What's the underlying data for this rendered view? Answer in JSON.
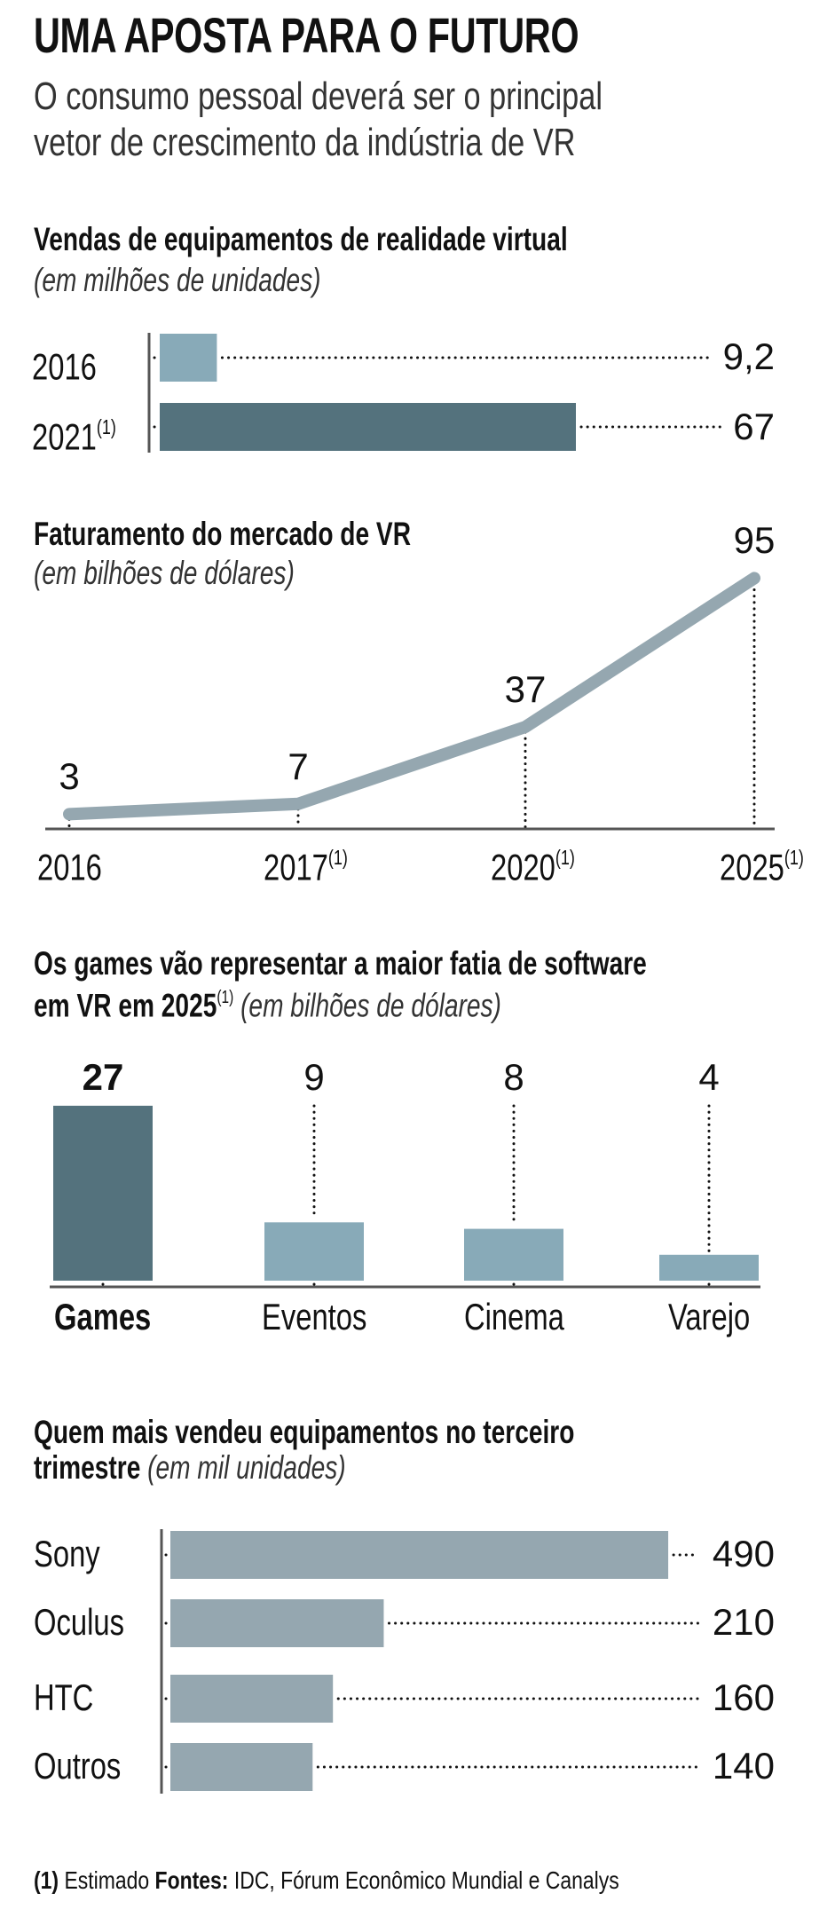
{
  "header": {
    "title": "UMA APOSTA PARA O FUTURO",
    "subtitle_line1": "O consumo pessoal deverá ser o principal",
    "subtitle_line2": "vetor de crescimento da indústria de VR"
  },
  "colors": {
    "dark_bar": "#54727D",
    "light_bar": "#88AAB8",
    "gray_bar": "#95A7B0",
    "axis": "#555555",
    "text": "#111111"
  },
  "footnote_marker": "(1)",
  "chart_data": [
    {
      "type": "bar",
      "orientation": "horizontal",
      "title": "Vendas de equipamentos de realidade virtual",
      "subtitle": "(em milhões de unidades)",
      "categories": [
        "2016",
        "2021"
      ],
      "category_notes": [
        "",
        "(1)"
      ],
      "values": [
        9.2,
        67
      ],
      "value_labels": [
        "9,2",
        "67"
      ],
      "highlight": [
        false,
        true
      ]
    },
    {
      "type": "line",
      "title": "Faturamento do mercado de VR",
      "subtitle": "(em bilhões de dólares)",
      "x": [
        "2016",
        "2017",
        "2020",
        "2025"
      ],
      "x_notes": [
        "",
        "(1)",
        "(1)",
        "(1)"
      ],
      "values": [
        3,
        7,
        37,
        95
      ],
      "value_labels": [
        "3",
        "7",
        "37",
        "95"
      ]
    },
    {
      "type": "bar",
      "orientation": "vertical",
      "title_line1": "Os games vão representar a maior fatia de software",
      "title_line2": "em VR em 2025",
      "title_note": "(1)",
      "subtitle": "(em bilhões de dólares)",
      "categories": [
        "Games",
        "Eventos",
        "Cinema",
        "Varejo"
      ],
      "values": [
        27,
        9,
        8,
        4
      ],
      "value_labels": [
        "27",
        "9",
        "8",
        "4"
      ],
      "highlight": [
        true,
        false,
        false,
        false
      ]
    },
    {
      "type": "bar",
      "orientation": "horizontal",
      "title_line1": "Quem mais vendeu equipamentos no terceiro",
      "title_line2": "trimestre",
      "subtitle": "(em mil unidades)",
      "categories": [
        "Sony",
        "Oculus",
        "HTC",
        "Outros"
      ],
      "values": [
        490,
        210,
        160,
        140
      ],
      "value_labels": [
        "490",
        "210",
        "160",
        "140"
      ]
    }
  ],
  "footer": {
    "note_marker": "(1)",
    "note_text": "Estimado",
    "sources_label": "Fontes:",
    "sources_text": "IDC, Fórum Econômico Mundial e Canalys"
  }
}
